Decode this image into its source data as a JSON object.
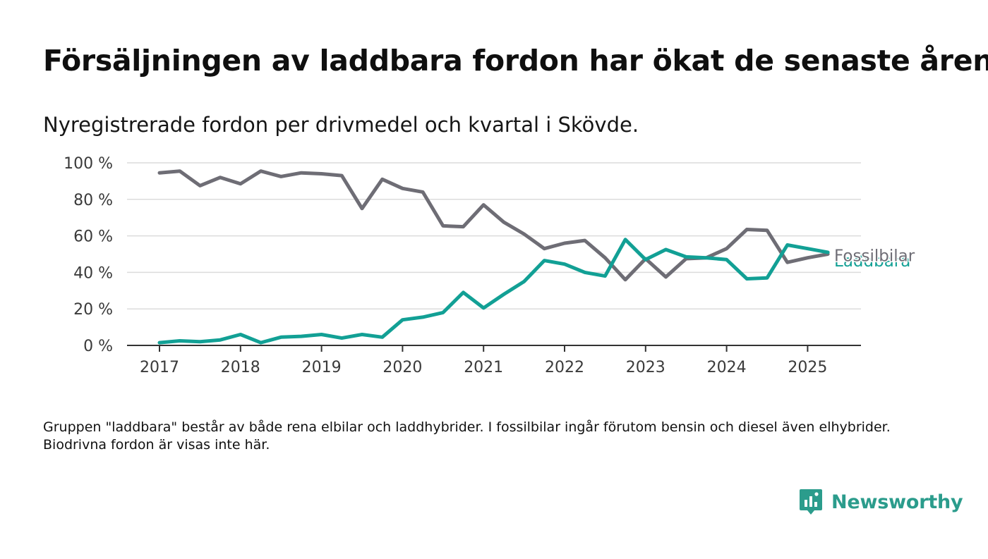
{
  "title": "Försäljningen av laddbara fordon har ökat de senaste åren",
  "subtitle": "Nyregistrerade fordon per drivmedel och kvartal i Skövde.",
  "footnote": "Gruppen \"laddbara\" består av både rena elbilar och laddhybrider. I fossilbilar ingår förutom bensin och diesel även elhybrider. Biodrivna fordon är visas inte här.",
  "brand": {
    "name": "Newsworthy",
    "icon": "newsworthy-chart-bubble-icon",
    "color": "#2b9c8c"
  },
  "chart_data": {
    "type": "line",
    "x_unit": "quarter",
    "x": [
      "2017-Q1",
      "2017-Q2",
      "2017-Q3",
      "2017-Q4",
      "2018-Q1",
      "2018-Q2",
      "2018-Q3",
      "2018-Q4",
      "2019-Q1",
      "2019-Q2",
      "2019-Q3",
      "2019-Q4",
      "2020-Q1",
      "2020-Q2",
      "2020-Q3",
      "2020-Q4",
      "2021-Q1",
      "2021-Q2",
      "2021-Q3",
      "2021-Q4",
      "2022-Q1",
      "2022-Q2",
      "2022-Q3",
      "2022-Q4",
      "2023-Q1",
      "2023-Q2",
      "2023-Q3",
      "2023-Q4",
      "2024-Q1",
      "2024-Q2",
      "2024-Q3",
      "2024-Q4",
      "2025-Q1",
      "2025-Q2"
    ],
    "x_tick_labels": [
      "2017",
      "2018",
      "2019",
      "2020",
      "2021",
      "2022",
      "2023",
      "2024",
      "2025"
    ],
    "y_tick_labels": [
      "0 %",
      "20 %",
      "40 %",
      "60 %",
      "80 %",
      "100 %"
    ],
    "ylim": [
      0,
      100
    ],
    "grid": true,
    "series": [
      {
        "name": "Fossilbilar",
        "color": "#6e6d75",
        "values": [
          94.5,
          95.5,
          87.5,
          92,
          88.5,
          95.5,
          92.5,
          94.5,
          94,
          93,
          75,
          91,
          86,
          84,
          65.5,
          65,
          77,
          67.5,
          61,
          53,
          56,
          57.5,
          48,
          36,
          47.5,
          37.5,
          47.5,
          48,
          53,
          63.5,
          63,
          45.5,
          48,
          50
        ]
      },
      {
        "name": "Laddbara",
        "color": "#12a095",
        "values": [
          1.5,
          2.5,
          2,
          3,
          6,
          1.5,
          4.5,
          5,
          6,
          4,
          6,
          4.5,
          14,
          15.5,
          18,
          29,
          20.5,
          28,
          35,
          46.5,
          44.5,
          40,
          38,
          58,
          47,
          52.5,
          48.5,
          48,
          47,
          36.5,
          37,
          55,
          53,
          51
        ]
      }
    ]
  }
}
